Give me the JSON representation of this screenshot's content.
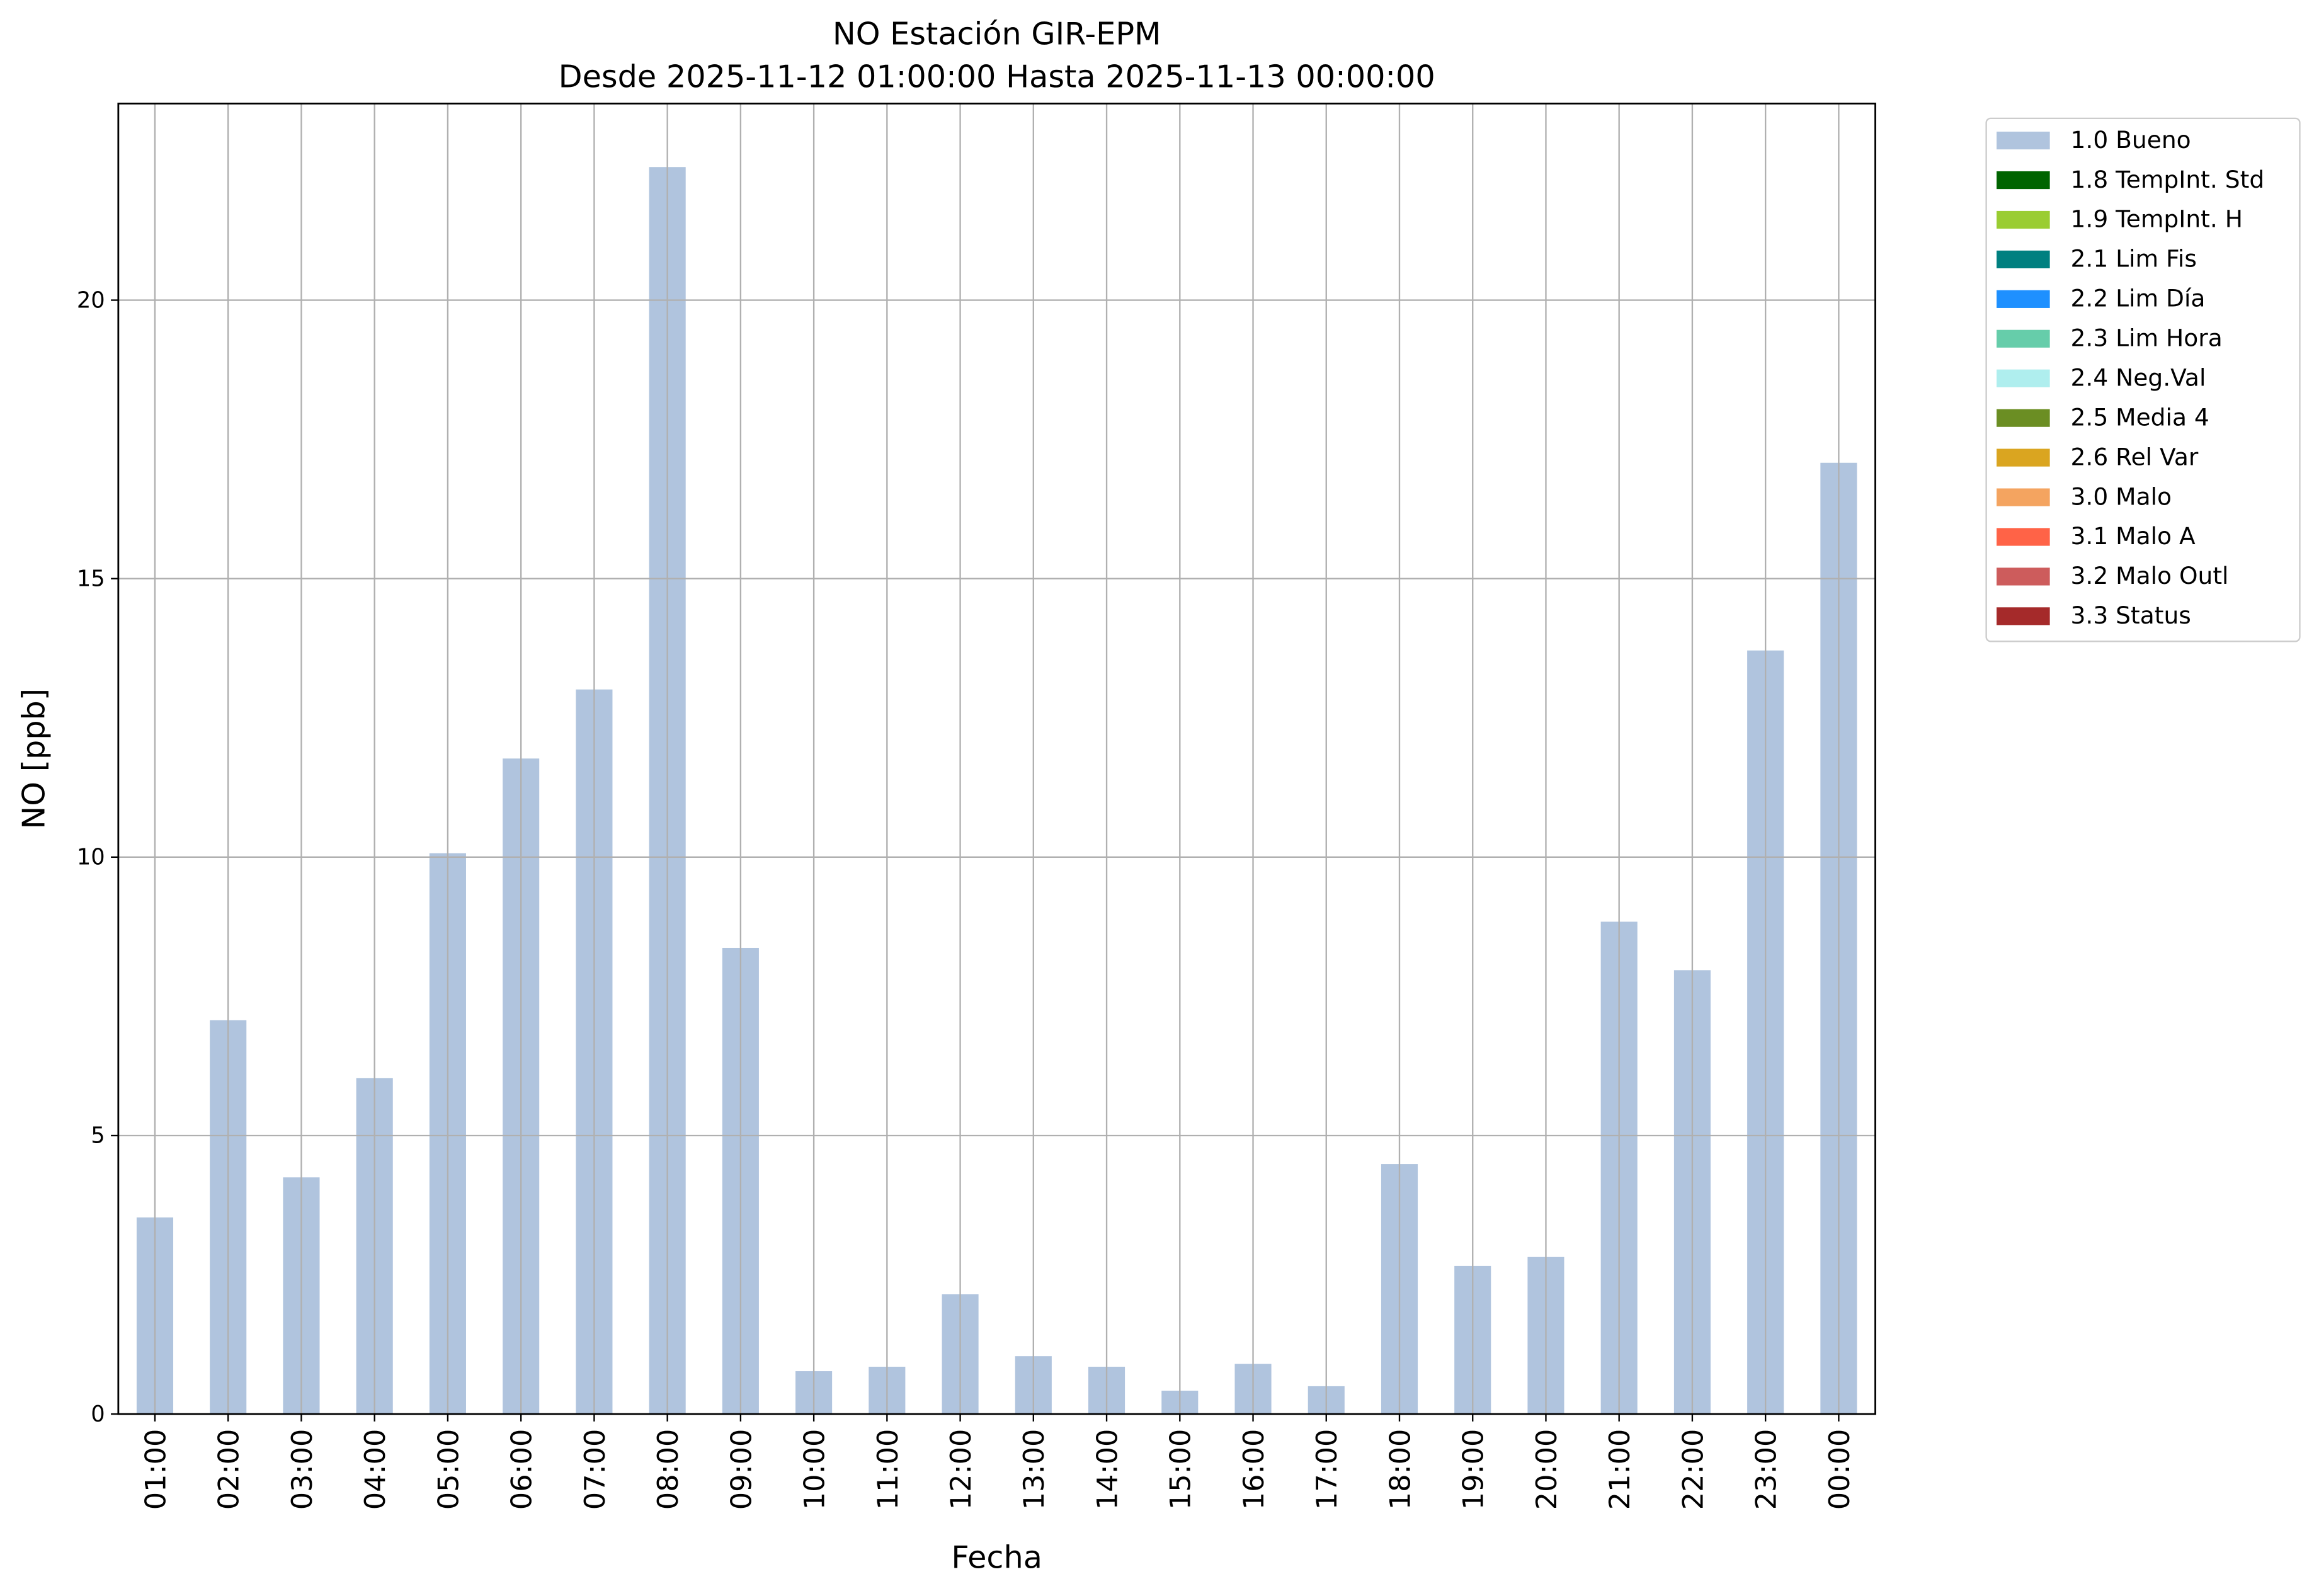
{
  "chart_data": {
    "type": "bar",
    "title": "NO Estación GIR-EPM",
    "subtitle": "Desde 2025-11-12 01:00:00 Hasta 2025-11-13 00:00:00",
    "x_label": "Fecha",
    "y_label": "NO [ppb]",
    "categories": [
      "01:00",
      "02:00",
      "03:00",
      "04:00",
      "05:00",
      "06:00",
      "07:00",
      "08:00",
      "09:00",
      "10:00",
      "11:00",
      "12:00",
      "13:00",
      "14:00",
      "15:00",
      "16:00",
      "17:00",
      "18:00",
      "19:00",
      "20:00",
      "21:00",
      "22:00",
      "23:00",
      "00:00"
    ],
    "series": [
      {
        "name": "1.0 Bueno",
        "color": "#b0c4de",
        "values": [
          3.53,
          7.07,
          4.25,
          6.03,
          10.07,
          11.77,
          13.01,
          22.39,
          8.37,
          0.77,
          0.85,
          2.15,
          1.04,
          0.85,
          0.42,
          0.9,
          0.5,
          4.49,
          2.66,
          2.82,
          8.84,
          7.97,
          13.71,
          17.08
        ]
      },
      {
        "name": "1.8 TempInt. Std",
        "color": "#006400"
      },
      {
        "name": "1.9 TempInt. H",
        "color": "#9acd32"
      },
      {
        "name": "2.1 Lim Fis",
        "color": "#008080"
      },
      {
        "name": "2.2 Lim Día",
        "color": "#1e90ff"
      },
      {
        "name": "2.3 Lim Hora",
        "color": "#66cdaa"
      },
      {
        "name": "2.4 Neg.Val",
        "color": "#afeeee"
      },
      {
        "name": "2.5 Media 4",
        "color": "#6b8e23"
      },
      {
        "name": "2.6 Rel Var",
        "color": "#daa520"
      },
      {
        "name": "3.0 Malo",
        "color": "#f4a460"
      },
      {
        "name": "3.1 Malo A",
        "color": "#ff6347"
      },
      {
        "name": "3.2 Malo Outl",
        "color": "#cd5c5c"
      },
      {
        "name": "3.3 Status",
        "color": "#a52a2a"
      }
    ],
    "ylim": [
      0,
      23.53
    ],
    "yticks": [
      0,
      5,
      10,
      15,
      20
    ],
    "grid": true,
    "legend_position": "outside right"
  }
}
